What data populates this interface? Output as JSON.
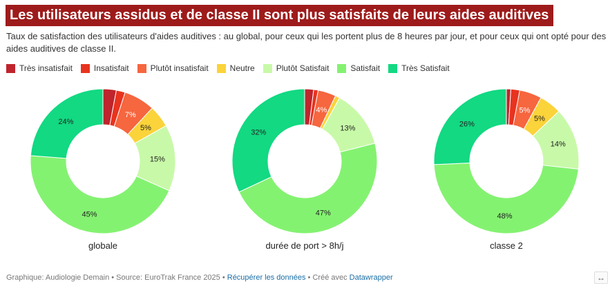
{
  "title": "Les utilisateurs assidus et de classe II sont plus satisfaits de leurs aides auditives",
  "subtitle": "Taux de satisfaction des utilisateurs d'aides auditives : au global, pour ceux qui les portent plus de 8 heures par jour, et pour ceux qui ont opté pour des aides auditives de classe II.",
  "legend": [
    {
      "label": "Très insatisfait",
      "color": "#c0242c"
    },
    {
      "label": "Insatisfait",
      "color": "#e8331f"
    },
    {
      "label": "Plutôt insatisfait",
      "color": "#f6663f"
    },
    {
      "label": "Neutre",
      "color": "#fbd33a"
    },
    {
      "label": "Plutôt Satisfait",
      "color": "#c8f9a8"
    },
    {
      "label": "Satisfait",
      "color": "#84f271"
    },
    {
      "label": "Très Satisfait",
      "color": "#12d982"
    }
  ],
  "chart_data": [
    {
      "type": "pie",
      "title": "globale",
      "categories": [
        "Très insatisfait",
        "Insatisfait",
        "Plutôt insatisfait",
        "Neutre",
        "Plutôt Satisfait",
        "Satisfait",
        "Très Satisfait"
      ],
      "values": [
        3,
        2,
        7,
        5,
        15,
        45,
        24
      ],
      "labels": [
        "",
        "",
        "7%",
        "5%",
        "15%",
        "45%",
        "24%"
      ]
    },
    {
      "type": "pie",
      "title": "durée de port > 8h/j",
      "categories": [
        "Très insatisfait",
        "Insatisfait",
        "Plutôt insatisfait",
        "Neutre",
        "Plutôt Satisfait",
        "Satisfait",
        "Très Satisfait"
      ],
      "values": [
        2,
        1,
        4,
        1,
        13,
        47,
        32
      ],
      "labels": [
        "",
        "",
        "4%",
        "",
        "13%",
        "47%",
        "32%"
      ]
    },
    {
      "type": "pie",
      "title": "classe 2",
      "categories": [
        "Très insatisfait",
        "Insatisfait",
        "Plutôt insatisfait",
        "Neutre",
        "Plutôt Satisfait",
        "Satisfait",
        "Très Satisfait"
      ],
      "values": [
        1,
        2,
        5,
        5,
        14,
        48,
        26
      ],
      "labels": [
        "",
        "",
        "5%",
        "5%",
        "14%",
        "48%",
        "26%"
      ]
    }
  ],
  "footer": {
    "source": "Graphique: Audiologie Demain • Source: EuroTrak France 2025 • ",
    "get_data": "Récupérer les données",
    "created_with": " • Créé avec ",
    "datawrapper": "Datawrapper"
  },
  "expand_icon": "↔"
}
